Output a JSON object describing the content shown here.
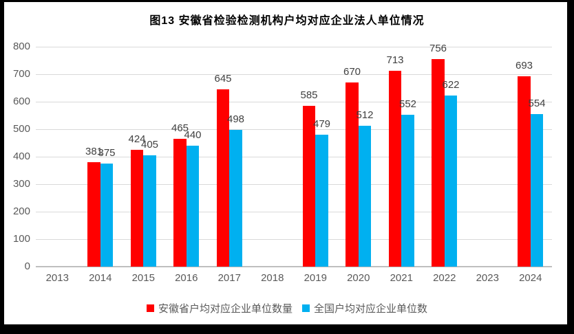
{
  "title": "图13 安徽省检验检测机构户均对应企业法人单位情况",
  "colors": {
    "anhui_series": "#ff0000",
    "national_series": "#00b0f0",
    "gridline": "#d9d9d9",
    "axis_line": "#bfbfbf",
    "tick_label": "#595959",
    "data_label": "#404040",
    "title_text": "#000000",
    "frame_border": "#000000"
  },
  "chart_data": {
    "type": "bar",
    "title": "图13 安徽省检验检测机构户均对应企业法人单位情况",
    "categories": [
      "2013",
      "2014",
      "2015",
      "2016",
      "2017",
      "2018",
      "2019",
      "2020",
      "2021",
      "2022",
      "2023",
      "2024"
    ],
    "series": [
      {
        "name": "安徽省户均对应企业单位数量",
        "color": "#ff0000",
        "values": [
          null,
          381,
          424,
          465,
          645,
          null,
          585,
          670,
          713,
          756,
          null,
          693
        ]
      },
      {
        "name": "全国户均对应企业单位数",
        "color": "#00b0f0",
        "values": [
          null,
          375,
          405,
          440,
          498,
          null,
          479,
          512,
          552,
          622,
          null,
          554
        ]
      }
    ],
    "xlabel": "",
    "ylabel": "",
    "ylim": [
      0,
      800
    ],
    "ytick_step": 100,
    "grid": true,
    "data_labels": true,
    "legend_position": "bottom"
  }
}
